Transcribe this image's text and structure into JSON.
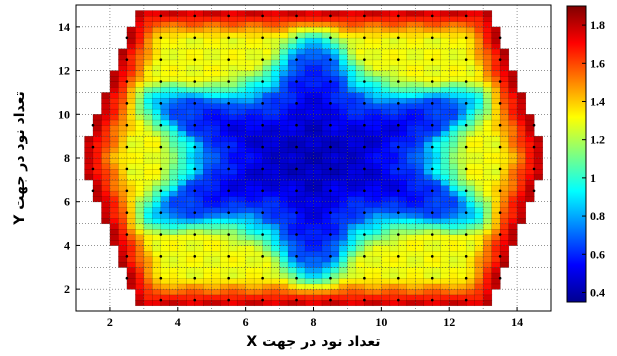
{
  "chart_data": {
    "type": "heatmap",
    "title": "",
    "xlabel": "تعداد نود در جهت X",
    "ylabel": "تعداد نود در جهت Y",
    "xlim": [
      1,
      15
    ],
    "ylim": [
      1,
      15
    ],
    "x_ticks": [
      "2",
      "4",
      "6",
      "8",
      "10",
      "12",
      "14"
    ],
    "y_ticks": [
      "2",
      "4",
      "6",
      "8",
      "10",
      "12",
      "14"
    ],
    "grid": true,
    "colorbar": {
      "range": [
        0.35,
        1.9
      ],
      "ticks": [
        "0.4",
        "0.6",
        "0.8",
        "1",
        "1.2",
        "1.4",
        "1.6",
        "1.8"
      ],
      "colormap": "jet"
    },
    "grid_resolution": 0.25,
    "domain": "hexagonal region of the x-y plane with flat top and bottom edges",
    "value_description": "Relative values: approx 0.4–0.6 in the central six-armed star, about 1.1–1.3 in the middle ring, rising to 1.7–1.9 along the outer hexagon edges"
  }
}
